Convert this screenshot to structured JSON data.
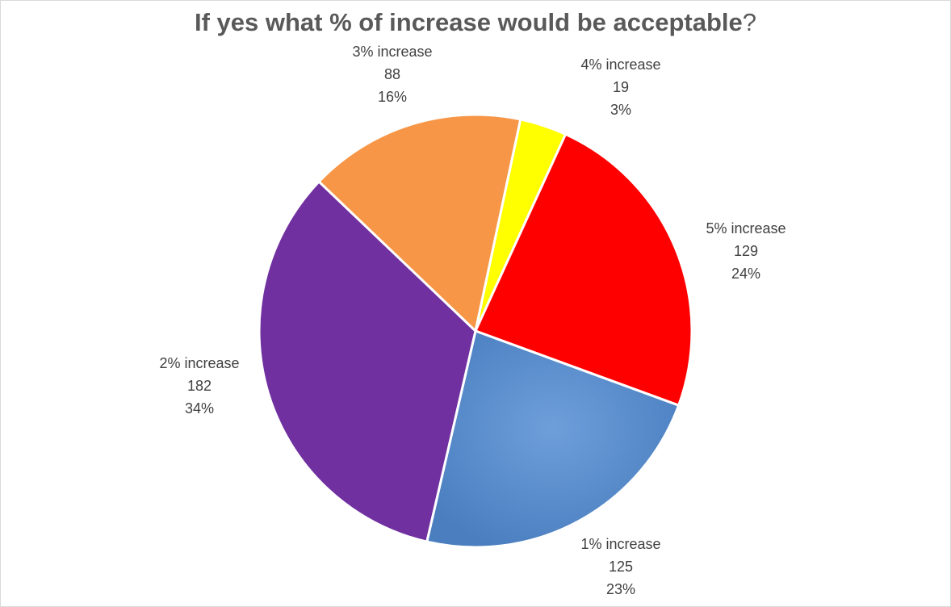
{
  "chart_data": {
    "type": "pie",
    "title": "If yes what % of increase would be acceptable",
    "title_suffix": "?",
    "slices": [
      {
        "name": "4% increase",
        "value": 19,
        "percent_label": "3%",
        "color": "#FFFF00"
      },
      {
        "name": "5% increase",
        "value": 129,
        "percent_label": "24%",
        "color": "#FF0000"
      },
      {
        "name": "1% increase",
        "value": 125,
        "percent_label": "23%",
        "color": "#5B8FCE"
      },
      {
        "name": "2% increase",
        "value": 182,
        "percent_label": "34%",
        "color": "#7030A0"
      },
      {
        "name": "3% increase",
        "value": 88,
        "percent_label": "16%",
        "color": "#F79646"
      }
    ],
    "start_angle_deg": 12,
    "direction": "clockwise",
    "legend": "none",
    "data_labels": "outside"
  }
}
